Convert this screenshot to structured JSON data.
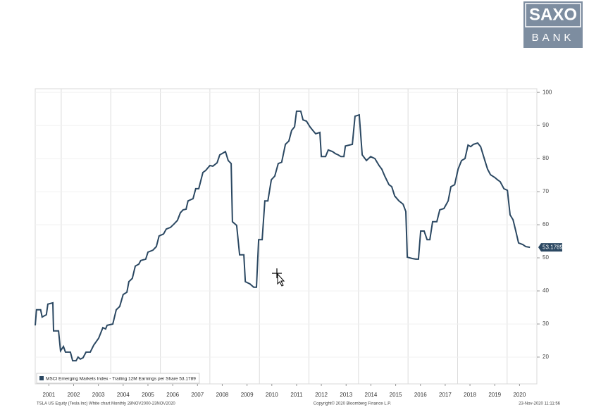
{
  "logo": {
    "top": "SAXO",
    "bottom": "BANK"
  },
  "chart_data": {
    "type": "line",
    "x": [
      2000.95,
      2001.0,
      2001.17,
      2001.23,
      2001.4,
      2001.46,
      2001.66,
      2001.69,
      2001.89,
      2001.97,
      2002.09,
      2002.17,
      2002.37,
      2002.46,
      2002.6,
      2002.68,
      2002.77,
      2002.88,
      2003.0,
      2003.17,
      2003.31,
      2003.51,
      2003.68,
      2003.79,
      2003.85,
      2004.08,
      2004.22,
      2004.36,
      2004.5,
      2004.65,
      2004.73,
      2004.87,
      2004.99,
      2005.13,
      2005.21,
      2005.41,
      2005.5,
      2005.7,
      2005.84,
      2005.95,
      2006.13,
      2006.24,
      2006.41,
      2006.55,
      2006.69,
      2006.81,
      2006.92,
      2007.04,
      2007.12,
      2007.32,
      2007.43,
      2007.55,
      2007.72,
      2007.83,
      2008.0,
      2008.12,
      2008.29,
      2008.4,
      2008.63,
      2008.74,
      2008.86,
      2008.91,
      2009.08,
      2009.2,
      2009.37,
      2009.43,
      2009.62,
      2009.77,
      2009.88,
      2009.97,
      2010.11,
      2010.22,
      2010.34,
      2010.48,
      2010.62,
      2010.76,
      2010.9,
      2011.05,
      2011.19,
      2011.3,
      2011.42,
      2011.5,
      2011.67,
      2011.76,
      2011.9,
      2012.04,
      2012.16,
      2012.27,
      2012.44,
      2012.5,
      2012.67,
      2012.78,
      2012.95,
      2013.07,
      2013.18,
      2013.29,
      2013.41,
      2013.47,
      2013.75,
      2013.86,
      2014.03,
      2014.15,
      2014.32,
      2014.49,
      2014.66,
      2014.83,
      2014.94,
      2015.06,
      2015.23,
      2015.34,
      2015.46,
      2015.63,
      2015.8,
      2015.91,
      2015.97,
      2016.17,
      2016.31,
      2016.42,
      2016.51,
      2016.65,
      2016.77,
      2016.88,
      2016.99,
      2017.16,
      2017.28,
      2017.45,
      2017.62,
      2017.73,
      2017.88,
      2018.02,
      2018.16,
      2018.3,
      2018.42,
      2018.53,
      2018.64,
      2018.81,
      2018.93,
      2019.1,
      2019.21,
      2019.33,
      2019.5,
      2019.61,
      2019.72,
      2019.87,
      2020.01,
      2020.12,
      2020.24,
      2020.35,
      2020.46,
      2020.63,
      2020.75,
      2020.92
    ],
    "series": [
      {
        "name": "MSCI Emerging Markets Index - Trailing 12M Earnings per Share",
        "color": "#2b4862",
        "values": [
          29.6,
          34.3,
          34.3,
          32.1,
          32.8,
          36.0,
          36.4,
          27.9,
          27.9,
          21.9,
          23.2,
          21.5,
          21.5,
          18.9,
          18.9,
          20.0,
          19.4,
          19.8,
          21.5,
          21.5,
          23.6,
          25.7,
          28.9,
          28.5,
          29.6,
          30.0,
          34.3,
          35.3,
          38.9,
          39.6,
          42.8,
          43.8,
          47.5,
          48.1,
          49.2,
          49.6,
          51.7,
          52.3,
          53.4,
          56.6,
          57.2,
          58.7,
          59.2,
          60.2,
          61.3,
          63.6,
          64.5,
          64.7,
          67.2,
          67.9,
          70.9,
          70.9,
          75.8,
          76.4,
          77.9,
          77.7,
          78.7,
          81.1,
          82.1,
          79.4,
          78.5,
          60.9,
          59.8,
          50.9,
          50.9,
          42.8,
          42.1,
          41.1,
          41.1,
          55.5,
          55.5,
          67.2,
          67.2,
          73.6,
          74.7,
          78.5,
          78.9,
          84.3,
          85.3,
          88.5,
          89.6,
          94.3,
          94.3,
          91.7,
          91.3,
          89.6,
          88.5,
          87.5,
          87.9,
          80.6,
          80.6,
          82.6,
          82.1,
          81.5,
          81.1,
          80.6,
          80.6,
          83.8,
          84.3,
          92.8,
          93.2,
          81.1,
          79.4,
          80.6,
          80.0,
          77.9,
          76.8,
          74.7,
          72.1,
          71.5,
          68.7,
          67.2,
          66.2,
          64.0,
          50.2,
          49.8,
          49.6,
          49.6,
          58.1,
          58.1,
          55.5,
          55.5,
          60.9,
          60.9,
          64.5,
          64.9,
          67.2,
          71.5,
          72.1,
          76.8,
          79.4,
          80.0,
          84.1,
          83.6,
          84.3,
          84.7,
          83.6,
          79.4,
          76.8,
          75.1,
          74.3,
          73.6,
          73.0,
          70.9,
          70.4,
          63.0,
          61.5,
          58.1,
          54.5,
          54.0,
          53.4,
          53.1789
        ]
      }
    ],
    "xlim": [
      2000.95,
      2021.2
    ],
    "ylim": [
      11.9,
      101.1
    ],
    "xticks": [
      {
        "value": 2001.5,
        "label": "2001"
      },
      {
        "value": 2002.5,
        "label": "2002"
      },
      {
        "value": 2003.5,
        "label": "2003"
      },
      {
        "value": 2004.5,
        "label": "2004"
      },
      {
        "value": 2005.5,
        "label": "2005"
      },
      {
        "value": 2006.5,
        "label": "2006"
      },
      {
        "value": 2007.5,
        "label": "2007"
      },
      {
        "value": 2008.5,
        "label": "2008"
      },
      {
        "value": 2009.5,
        "label": "2009"
      },
      {
        "value": 2010.5,
        "label": "2010"
      },
      {
        "value": 2011.5,
        "label": "2011"
      },
      {
        "value": 2012.5,
        "label": "2012"
      },
      {
        "value": 2013.5,
        "label": "2013"
      },
      {
        "value": 2014.5,
        "label": "2014"
      },
      {
        "value": 2015.5,
        "label": "2015"
      },
      {
        "value": 2016.5,
        "label": "2016"
      },
      {
        "value": 2017.5,
        "label": "2017"
      },
      {
        "value": 2018.5,
        "label": "2018"
      },
      {
        "value": 2019.5,
        "label": "2019"
      },
      {
        "value": 2020.5,
        "label": "2020"
      }
    ],
    "x_gridlines": [
      2002,
      2004,
      2006,
      2008,
      2010,
      2012,
      2014,
      2016,
      2018,
      2020
    ],
    "yticks": [
      20,
      30,
      40,
      50,
      60,
      70,
      80,
      90,
      100
    ],
    "legend": "lower left",
    "footer_left": "TSLA US Equity (Tesla Inc) White chart  Monthly 28NOV2000-23NOV2020",
    "footer_center": "Copyright© 2020 Bloomberg Finance L.P.",
    "footer_right": "23-Nov-2020 11:11:56"
  }
}
